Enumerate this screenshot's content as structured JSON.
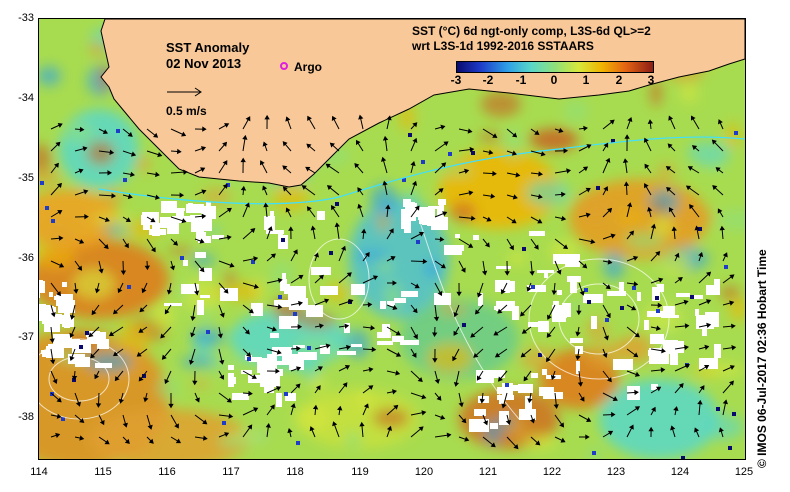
{
  "title": "SST Anomaly",
  "date": "02 Nov 2013",
  "argo_label": "Argo",
  "reference_vector_label": "0.5 m/s",
  "description_line1": "SST (°C) 6d ngt-only comp, L3S-6d QL>=2",
  "description_line2": "wrt L3S-1d 1992-2016 SSTAARS",
  "colorbar": {
    "ticks": [
      "-3",
      "-2",
      "-1",
      "0",
      "1",
      "2",
      "3"
    ],
    "colors": [
      "#0a0a6e",
      "#1e3cc8",
      "#2fa0e6",
      "#5ad7c8",
      "#8fe07a",
      "#d7e83c",
      "#f0b400",
      "#e46414",
      "#8c1e14"
    ]
  },
  "latitude_labels": [
    "-33",
    "-34",
    "-35",
    "-36",
    "-37",
    "-38"
  ],
  "longitude_labels": [
    "114",
    "115",
    "116",
    "117",
    "118",
    "119",
    "120",
    "121",
    "122",
    "123",
    "124",
    "125"
  ],
  "credit": "©  IMOS 06-Jul-2017 02:36 Hobart Time",
  "colors": {
    "land": "#f8c898",
    "no_data": "#ffffff",
    "coastline": "#000000",
    "contour": "#ffffff",
    "shelf_line": "#40e0ff"
  }
}
